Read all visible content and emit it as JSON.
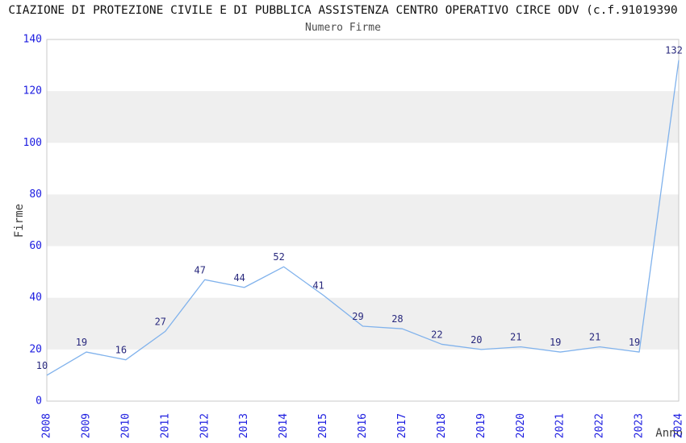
{
  "header": {
    "title": "CIAZIONE DI PROTEZIONE CIVILE E DI PUBBLICA ASSISTENZA CENTRO OPERATIVO CIRCE ODV (c.f.91019390",
    "subtitle": "Numero Firme"
  },
  "chart_data": {
    "type": "line",
    "title": "Numero Firme",
    "xlabel": "Anno",
    "ylabel": "Firme",
    "categories": [
      "2008",
      "2009",
      "2010",
      "2011",
      "2012",
      "2013",
      "2014",
      "2015",
      "2016",
      "2017",
      "2018",
      "2019",
      "2020",
      "2021",
      "2022",
      "2023",
      "2024"
    ],
    "values": [
      10,
      19,
      16,
      27,
      47,
      44,
      52,
      41,
      29,
      28,
      22,
      20,
      21,
      19,
      21,
      19,
      132
    ],
    "ylim": [
      0,
      140
    ],
    "yticks": [
      0,
      20,
      40,
      60,
      80,
      100,
      120,
      140
    ],
    "grid": "alternating-horizontal-bands",
    "legend": "none",
    "markers": "none",
    "data_labels": true
  },
  "colors": {
    "line": "#80b2ec",
    "tick_label": "#1c1ce0",
    "data_label": "#28287d",
    "band": "#efefef",
    "plot_border": "#c9c9c9",
    "title": "#111111",
    "subtitle": "#4d4d4d",
    "axis_label": "#3c3c3c",
    "background": "#ffffff"
  }
}
